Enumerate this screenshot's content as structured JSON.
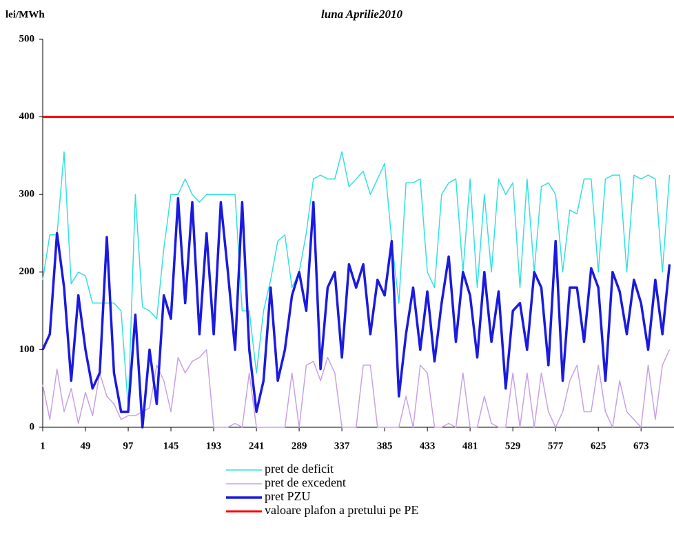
{
  "chart_data": {
    "type": "line",
    "title": "luna  Aprilie2010",
    "y_label": "lei/MWh",
    "x": [
      1,
      9,
      17,
      25,
      33,
      41,
      49,
      57,
      65,
      73,
      81,
      89,
      97,
      105,
      113,
      121,
      129,
      137,
      145,
      153,
      161,
      169,
      177,
      185,
      193,
      201,
      209,
      217,
      225,
      233,
      241,
      249,
      257,
      265,
      273,
      281,
      289,
      297,
      305,
      313,
      321,
      329,
      337,
      345,
      353,
      361,
      369,
      377,
      385,
      393,
      401,
      409,
      417,
      425,
      433,
      441,
      449,
      457,
      465,
      473,
      481,
      489,
      497,
      505,
      513,
      521,
      529,
      537,
      545,
      553,
      561,
      569,
      577,
      585,
      593,
      601,
      609,
      617,
      625,
      633,
      641,
      649,
      657,
      665,
      673,
      681,
      689,
      697,
      705
    ],
    "series": [
      {
        "name": "pret de deficit",
        "color": "#33e0e0",
        "width": 1.5,
        "values": [
          190,
          248,
          248,
          355,
          185,
          200,
          195,
          160,
          160,
          160,
          160,
          150,
          25,
          300,
          155,
          150,
          140,
          230,
          300,
          300,
          320,
          300,
          290,
          300,
          300,
          300,
          300,
          300,
          150,
          150,
          70,
          150,
          190,
          240,
          248,
          180,
          200,
          250,
          320,
          325,
          320,
          320,
          355,
          310,
          320,
          330,
          300,
          320,
          340,
          240,
          160,
          315,
          315,
          320,
          200,
          180,
          300,
          315,
          320,
          200,
          320,
          180,
          300,
          200,
          320,
          300,
          315,
          180,
          320,
          200,
          310,
          315,
          300,
          200,
          280,
          275,
          320,
          320,
          200,
          320,
          325,
          325,
          200,
          325,
          320,
          325,
          320,
          200,
          325
        ]
      },
      {
        "name": "pret de excedent",
        "color": "#c8a0e8",
        "width": 1.5,
        "values": [
          55,
          10,
          75,
          20,
          50,
          5,
          45,
          15,
          70,
          40,
          30,
          10,
          15,
          15,
          20,
          25,
          80,
          60,
          20,
          90,
          70,
          85,
          90,
          100,
          0,
          0,
          0,
          5,
          0,
          70,
          0,
          0,
          0,
          0,
          0,
          70,
          0,
          80,
          85,
          60,
          90,
          70,
          0,
          0,
          0,
          80,
          80,
          0,
          0,
          0,
          0,
          40,
          0,
          80,
          70,
          0,
          0,
          5,
          0,
          70,
          0,
          0,
          40,
          5,
          0,
          0,
          70,
          0,
          70,
          0,
          70,
          20,
          0,
          20,
          60,
          80,
          20,
          20,
          80,
          20,
          0,
          60,
          20,
          10,
          0,
          80,
          10,
          80,
          100
        ]
      },
      {
        "name": "pret PZU",
        "color": "#1a1ae0",
        "width": 3.5,
        "values": [
          100,
          120,
          250,
          180,
          60,
          170,
          100,
          50,
          70,
          245,
          70,
          20,
          20,
          145,
          0,
          100,
          30,
          170,
          140,
          295,
          160,
          290,
          120,
          250,
          120,
          290,
          200,
          100,
          290,
          100,
          20,
          60,
          180,
          60,
          100,
          170,
          200,
          150,
          290,
          75,
          180,
          200,
          90,
          210,
          180,
          210,
          120,
          190,
          170,
          240,
          40,
          120,
          180,
          100,
          175,
          85,
          160,
          220,
          110,
          200,
          170,
          90,
          200,
          110,
          175,
          50,
          150,
          160,
          100,
          200,
          180,
          80,
          240,
          60,
          180,
          180,
          110,
          205,
          180,
          60,
          200,
          175,
          120,
          190,
          160,
          100,
          190,
          120,
          210
        ]
      }
    ],
    "reference_line": {
      "name": "valoare plafon a pretului pe PE",
      "color": "#ff0000",
      "value": 400
    },
    "xlim": [
      1,
      710
    ],
    "xticks": [
      1,
      49,
      97,
      145,
      193,
      241,
      289,
      337,
      385,
      433,
      481,
      529,
      577,
      625,
      673
    ],
    "ylim": [
      0,
      500
    ],
    "yticks": [
      0,
      100,
      200,
      300,
      400,
      500
    ]
  }
}
